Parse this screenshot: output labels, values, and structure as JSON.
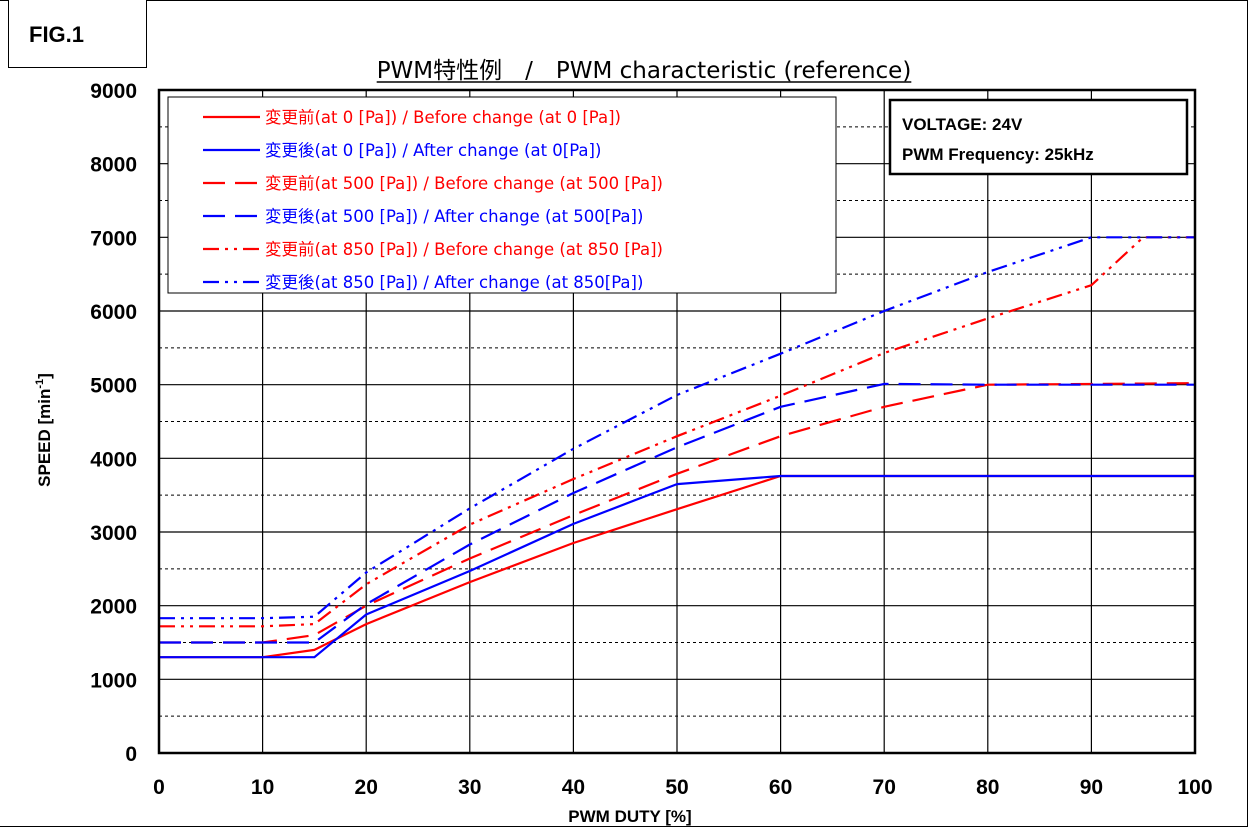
{
  "figure_label": "FIG.1",
  "chart_data": {
    "type": "line",
    "title": "PWM特性例　/　PWM characteristic (reference)",
    "xlabel": "PWM DUTY [%]",
    "ylabel_main": "SPEED [min",
    "ylabel_sup": "-1",
    "ylabel_close": "]",
    "xlim": [
      0,
      100
    ],
    "ylim": [
      0,
      9000
    ],
    "x_ticks": [
      0,
      10,
      20,
      30,
      40,
      50,
      60,
      70,
      80,
      90,
      100
    ],
    "x_tick_labels": [
      "0",
      "10",
      "20",
      "30",
      "40",
      "50",
      "60",
      "70",
      "80",
      "90",
      "100"
    ],
    "y_ticks": [
      0,
      1000,
      2000,
      3000,
      4000,
      5000,
      6000,
      7000,
      8000,
      9000
    ],
    "y_tick_labels": [
      "0",
      "1000",
      "2000",
      "3000",
      "4000",
      "5000",
      "6000",
      "7000",
      "8000",
      "9000"
    ],
    "major_grid": true,
    "minor_y_grid": [
      500,
      1500,
      2500,
      3500,
      4500,
      5500,
      6500,
      7500,
      8500
    ],
    "legend_position": "top-left",
    "annotation": {
      "voltage_label": "VOLTAGE",
      "voltage_value": "24V",
      "freq_label": "PWM Frequency",
      "freq_value": "25kHz"
    },
    "series": [
      {
        "name": "変更前(at 0 [Pa]) / Before change (at 0 [Pa])",
        "color": "#ff0000",
        "dash": "solid",
        "points": [
          [
            0,
            1300
          ],
          [
            10,
            1300
          ],
          [
            15,
            1400
          ],
          [
            20,
            1750
          ],
          [
            30,
            2320
          ],
          [
            40,
            2850
          ],
          [
            50,
            3310
          ],
          [
            60,
            3760
          ],
          [
            100,
            3760
          ]
        ]
      },
      {
        "name": "変更後(at 0 [Pa]) / After change (at 0[Pa])",
        "color": "#0000ff",
        "dash": "solid",
        "points": [
          [
            0,
            1300
          ],
          [
            10,
            1300
          ],
          [
            15,
            1300
          ],
          [
            20,
            1880
          ],
          [
            30,
            2470
          ],
          [
            40,
            3110
          ],
          [
            50,
            3650
          ],
          [
            60,
            3760
          ],
          [
            100,
            3760
          ]
        ]
      },
      {
        "name": "変更前(at 500 [Pa]) / Before change (at 500 [Pa])",
        "color": "#ff0000",
        "dash": "dash",
        "points": [
          [
            0,
            1500
          ],
          [
            10,
            1500
          ],
          [
            15,
            1600
          ],
          [
            20,
            2000
          ],
          [
            30,
            2640
          ],
          [
            40,
            3230
          ],
          [
            50,
            3790
          ],
          [
            60,
            4300
          ],
          [
            70,
            4700
          ],
          [
            80,
            5000
          ],
          [
            100,
            5020
          ]
        ]
      },
      {
        "name": "変更後(at 500 [Pa]) / After change (at 500[Pa])",
        "color": "#0000ff",
        "dash": "dash",
        "points": [
          [
            0,
            1500
          ],
          [
            10,
            1500
          ],
          [
            15,
            1500
          ],
          [
            20,
            2020
          ],
          [
            30,
            2830
          ],
          [
            40,
            3530
          ],
          [
            50,
            4150
          ],
          [
            60,
            4700
          ],
          [
            70,
            5010
          ],
          [
            80,
            5000
          ],
          [
            100,
            5000
          ]
        ]
      },
      {
        "name": "変更前(at 850 [Pa]) / Before change (at 850 [Pa])",
        "color": "#ff0000",
        "dash": "dashdotdot",
        "points": [
          [
            0,
            1720
          ],
          [
            10,
            1720
          ],
          [
            15,
            1750
          ],
          [
            20,
            2290
          ],
          [
            30,
            3100
          ],
          [
            40,
            3720
          ],
          [
            50,
            4300
          ],
          [
            60,
            4850
          ],
          [
            70,
            5430
          ],
          [
            80,
            5900
          ],
          [
            90,
            6350
          ],
          [
            95,
            7000
          ],
          [
            100,
            7000
          ]
        ]
      },
      {
        "name": "変更後(at 850 [Pa]) / After change (at 850[Pa])",
        "color": "#0000ff",
        "dash": "dashdotdot",
        "points": [
          [
            0,
            1830
          ],
          [
            10,
            1830
          ],
          [
            15,
            1850
          ],
          [
            20,
            2450
          ],
          [
            30,
            3320
          ],
          [
            40,
            4130
          ],
          [
            50,
            4860
          ],
          [
            60,
            5420
          ],
          [
            70,
            6000
          ],
          [
            80,
            6530
          ],
          [
            90,
            7000
          ],
          [
            100,
            7000
          ]
        ]
      }
    ]
  }
}
